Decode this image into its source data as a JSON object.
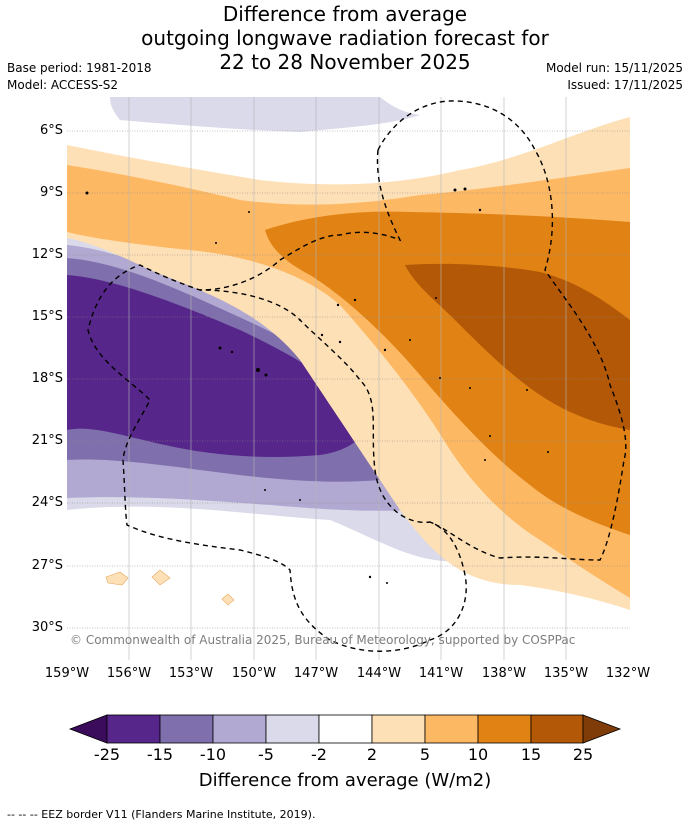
{
  "title": {
    "line1": "Difference from average",
    "line2": "outgoing longwave radiation forecast for",
    "line3": "22 to 28 November 2025"
  },
  "meta": {
    "base_period": "Base period: 1981-2018",
    "model": "Model: ACCESS-S2",
    "model_run": "Model run: 15/11/2025",
    "issued": "Issued: 17/11/2025"
  },
  "map": {
    "x_ticks": [
      "159°W",
      "156°W",
      "153°W",
      "150°W",
      "147°W",
      "144°W",
      "141°W",
      "138°W",
      "135°W",
      "132°W"
    ],
    "y_ticks": [
      "6°S",
      "9°S",
      "12°S",
      "15°S",
      "18°S",
      "21°S",
      "24°S",
      "27°S",
      "30°S"
    ],
    "copyright": "© Commonwealth of Australia 2025, Bureau of Meteorology, supported by COSPPac"
  },
  "colorbar": {
    "labels": [
      "-25",
      "-15",
      "-10",
      "-5",
      "-2",
      "2",
      "5",
      "10",
      "15",
      "25"
    ],
    "title": "Difference from average (W/m2)",
    "colors": [
      "#3b0c5c",
      "#56268a",
      "#7f6fac",
      "#b1a9d1",
      "#dadaeb",
      "#ffffff",
      "#fee0b6",
      "#fdb863",
      "#e08214",
      "#b35806",
      "#7f3b08"
    ]
  },
  "footer": "-- -- -- EEZ border V11 (Flanders Marine Institute, 2019)."
}
